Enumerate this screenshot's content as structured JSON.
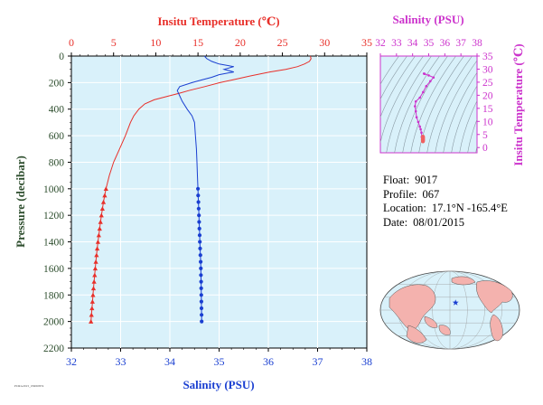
{
  "chart_data": [
    {
      "type": "line",
      "name": "profile",
      "xlabel_top": "Insitu Temperature (℃)",
      "xlabel_bottom": "Salinity (PSU)",
      "ylabel": "Pressure (decibar)",
      "temperature_axis": {
        "range": [
          0,
          35
        ],
        "ticks": [
          "0",
          "5",
          "10",
          "15",
          "20",
          "25",
          "30",
          "35"
        ],
        "color": "#e8302a"
      },
      "salinity_axis": {
        "range": [
          32,
          38
        ],
        "ticks": [
          "32",
          "33",
          "34",
          "35",
          "36",
          "37",
          "38"
        ],
        "color": "#1a3fd1"
      },
      "pressure_axis": {
        "range": [
          0,
          2200
        ],
        "inverted": true,
        "ticks": [
          "0",
          "200",
          "400",
          "600",
          "800",
          "1000",
          "1200",
          "1400",
          "1600",
          "1800",
          "2000",
          "2200"
        ]
      },
      "temperature_series": {
        "color": "#e8302a",
        "pressure": [
          0,
          20,
          40,
          60,
          80,
          100,
          120,
          150,
          180,
          200,
          230,
          260,
          280,
          300,
          330,
          360,
          400,
          450,
          500,
          600,
          700,
          800,
          900,
          1000
        ],
        "temperature": [
          28.3,
          28.4,
          28.2,
          27.6,
          26.8,
          25.4,
          23.5,
          21.2,
          19.1,
          17.6,
          15.8,
          13.9,
          12.8,
          11.6,
          9.8,
          8.7,
          8.0,
          7.4,
          7.0,
          6.4,
          5.7,
          5.0,
          4.5,
          4.1
        ],
        "marker_pressure": [
          1000,
          1050,
          1100,
          1150,
          1200,
          1250,
          1300,
          1350,
          1400,
          1450,
          1500,
          1550,
          1600,
          1650,
          1700,
          1750,
          1800,
          1850,
          1900,
          1950,
          2000
        ],
        "marker_temperature": [
          4.1,
          3.95,
          3.8,
          3.68,
          3.56,
          3.45,
          3.35,
          3.25,
          3.15,
          3.06,
          2.98,
          2.9,
          2.83,
          2.76,
          2.69,
          2.62,
          2.56,
          2.5,
          2.44,
          2.38,
          2.32
        ]
      },
      "salinity_series": {
        "color": "#1a3fd1",
        "pressure": [
          0,
          20,
          40,
          60,
          80,
          100,
          120,
          140,
          160,
          180,
          200,
          230,
          260,
          300,
          340,
          400,
          450,
          500,
          600,
          700,
          800,
          900,
          1000
        ],
        "salinity": [
          34.7,
          34.75,
          34.85,
          35.0,
          35.3,
          35.1,
          35.3,
          35.0,
          34.85,
          34.65,
          34.45,
          34.2,
          34.15,
          34.2,
          34.25,
          34.35,
          34.45,
          34.5,
          34.52,
          34.54,
          34.55,
          34.56,
          34.57
        ],
        "marker_pressure": [
          1000,
          1050,
          1100,
          1150,
          1200,
          1250,
          1300,
          1350,
          1400,
          1450,
          1500,
          1550,
          1600,
          1650,
          1700,
          1750,
          1800,
          1850,
          1900,
          1950,
          2000
        ],
        "marker_salinity": [
          34.57,
          34.575,
          34.58,
          34.585,
          34.59,
          34.595,
          34.6,
          34.605,
          34.61,
          34.615,
          34.62,
          34.625,
          34.63,
          34.632,
          34.634,
          34.636,
          34.638,
          34.64,
          34.642,
          34.644,
          34.646
        ]
      }
    },
    {
      "type": "scatter",
      "name": "ts_diagram",
      "xlabel": "Salinity (PSU)",
      "ylabel": "Insitu Temperature (℃)",
      "x_ticks": [
        "32",
        "33",
        "34",
        "35",
        "36",
        "37",
        "38"
      ],
      "y_ticks": [
        "0",
        "5",
        "10",
        "15",
        "20",
        "25",
        "30",
        "35"
      ],
      "xlim": [
        32,
        38
      ],
      "ylim": [
        -2,
        35
      ],
      "color": "#cc33cc",
      "salinity": [
        34.7,
        34.75,
        35.0,
        35.3,
        35.1,
        34.85,
        34.65,
        34.45,
        34.2,
        34.15,
        34.2,
        34.25,
        34.35,
        34.45,
        34.5,
        34.55,
        34.57,
        34.6,
        34.63,
        34.646
      ],
      "temperature": [
        28.3,
        28.2,
        27.6,
        26.8,
        25.4,
        23.5,
        21.2,
        19.1,
        17.6,
        15.8,
        13.9,
        11.6,
        9.8,
        8.0,
        7.0,
        5.7,
        4.1,
        3.4,
        2.8,
        2.32
      ]
    }
  ],
  "info": {
    "float_label": "Float:",
    "float_value": "9017",
    "profile_label": "Profile:",
    "profile_value": "067",
    "location_label": "Location:",
    "location_value": "17.1°N  -165.4°E",
    "date_label": "Date:",
    "date_value": "08/01/2015"
  },
  "map": {
    "lat": 17.1,
    "lon": -165.4,
    "marker_color": "#1a3fd1"
  },
  "footer_code": "PCRG2015_03000874"
}
